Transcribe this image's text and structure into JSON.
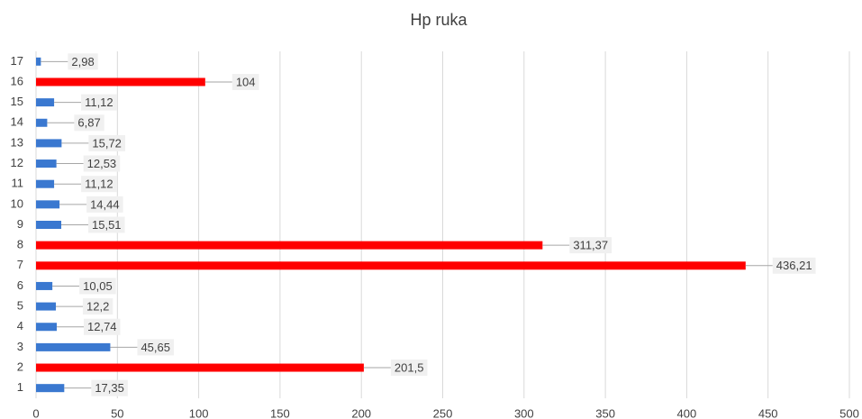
{
  "chart_data": {
    "type": "hbar",
    "title": "Hp ruka",
    "categories": [
      "1",
      "2",
      "3",
      "4",
      "5",
      "6",
      "7",
      "8",
      "9",
      "10",
      "11",
      "12",
      "13",
      "14",
      "15",
      "16",
      "17"
    ],
    "values": [
      17.35,
      201.5,
      45.65,
      12.74,
      12.2,
      10.05,
      436.21,
      311.37,
      15.51,
      14.44,
      11.12,
      12.53,
      15.72,
      6.87,
      11.12,
      104,
      2.98
    ],
    "value_labels": [
      "17,35",
      "201,5",
      "45,65",
      "12,74",
      "12,2",
      "10,05",
      "436,21",
      "311,37",
      "15,51",
      "14,44",
      "11,12",
      "12,53",
      "15,72",
      "6,87",
      "11,12",
      "104",
      "2,98"
    ],
    "colors": [
      "#3a78d0",
      "#ff0000",
      "#3a78d0",
      "#3a78d0",
      "#3a78d0",
      "#3a78d0",
      "#ff0000",
      "#ff0000",
      "#3a78d0",
      "#3a78d0",
      "#3a78d0",
      "#3a78d0",
      "#3a78d0",
      "#3a78d0",
      "#3a78d0",
      "#ff0000",
      "#3a78d0"
    ],
    "xlim": [
      0,
      500
    ],
    "xticks": [
      0,
      50,
      100,
      150,
      200,
      250,
      300,
      350,
      400,
      450,
      500
    ],
    "grid": true
  }
}
